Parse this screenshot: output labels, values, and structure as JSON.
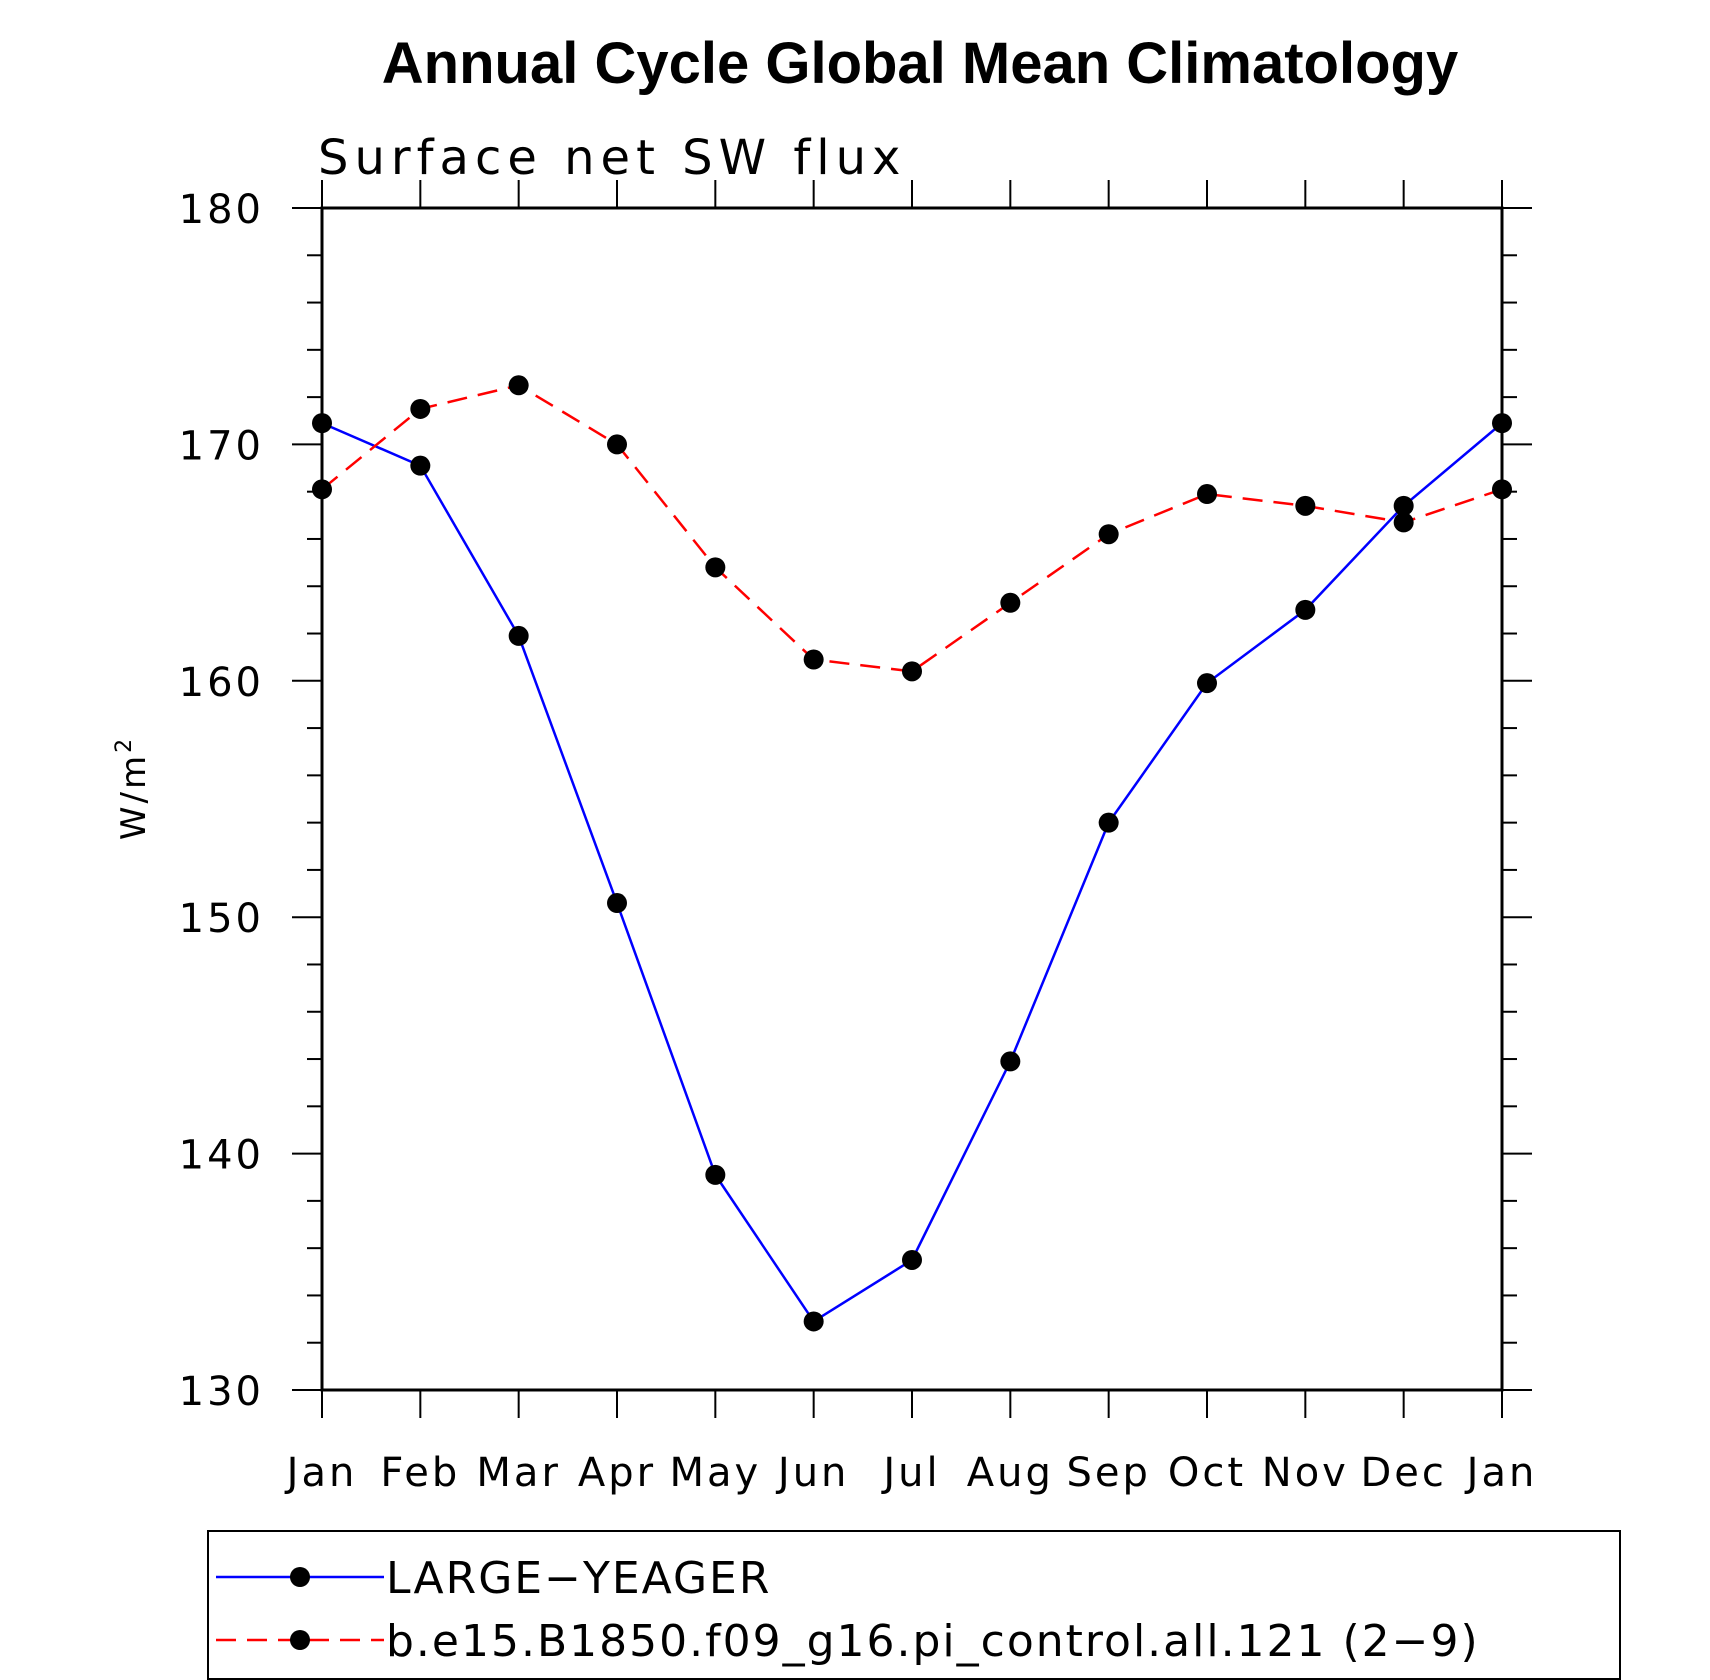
{
  "chart_data": {
    "type": "line",
    "title": "Annual Cycle Global Mean Climatology",
    "subtitle": "Surface net SW flux",
    "xlabel": "",
    "ylabel": "W/m",
    "ylabel_superscript": "2",
    "categories": [
      "Jan",
      "Feb",
      "Mar",
      "Apr",
      "May",
      "Jun",
      "Jul",
      "Aug",
      "Sep",
      "Oct",
      "Nov",
      "Dec",
      "Jan"
    ],
    "ylim": [
      130,
      180
    ],
    "yticks": [
      "130",
      "140",
      "150",
      "160",
      "170",
      "180"
    ],
    "grid": false,
    "legend_position": "bottom",
    "series": [
      {
        "name": "LARGE−YEAGER",
        "color": "#0000ff",
        "dash": "solid",
        "values": [
          170.9,
          169.1,
          161.9,
          150.6,
          139.1,
          132.9,
          135.5,
          143.9,
          154.0,
          159.9,
          163.0,
          167.4,
          170.9
        ]
      },
      {
        "name": "b.e15.B1850.f09_g16.pi_control.all.121 (2−9)",
        "color": "#ff0000",
        "dash": "dashed",
        "values": [
          168.1,
          171.5,
          172.5,
          170.0,
          164.8,
          160.9,
          160.4,
          163.3,
          166.2,
          167.9,
          167.4,
          166.7,
          168.1
        ]
      }
    ]
  }
}
